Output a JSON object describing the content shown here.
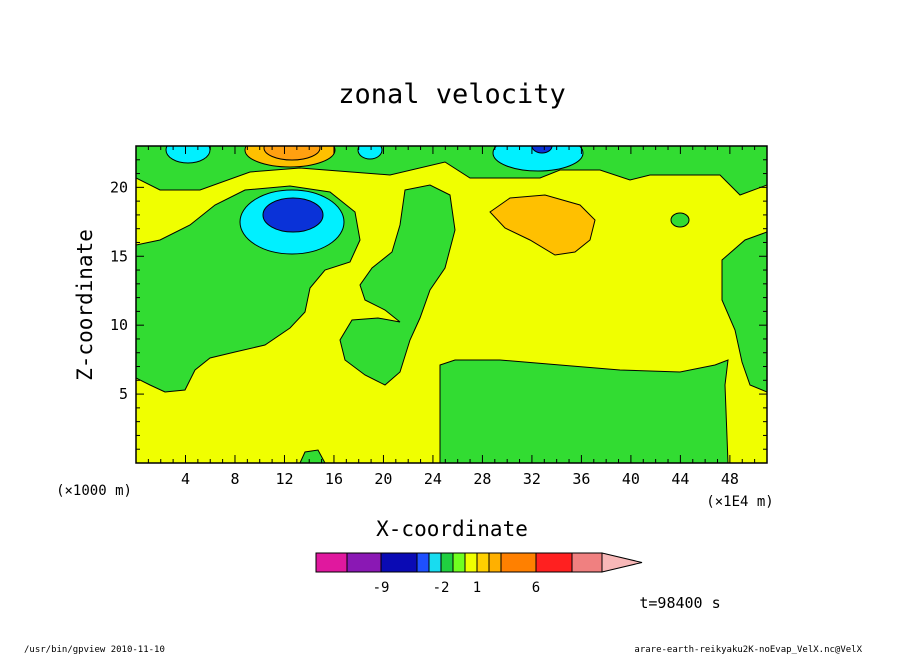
{
  "chart_data": {
    "type": "heatmap",
    "title": "zonal velocity",
    "xlabel": "X-coordinate",
    "ylabel": "Z-coordinate",
    "x_unit_label": "(×1E4 m)",
    "y_unit_label": "(×1000 m)",
    "xlim": [
      0,
      51
    ],
    "ylim": [
      0,
      23
    ],
    "x_ticks": [
      4,
      8,
      12,
      16,
      20,
      24,
      28,
      32,
      36,
      40,
      44,
      48
    ],
    "y_ticks": [
      5,
      10,
      15,
      20
    ],
    "colorbar": {
      "levels": [
        -12,
        -9,
        -6,
        -3,
        -2,
        -1,
        0,
        1,
        2,
        3,
        6,
        9,
        12
      ],
      "colors": [
        "#e0189e",
        "#8a18b4",
        "#0a0ab4",
        "#1e50ff",
        "#18dcf0",
        "#20d040",
        "#70ff20",
        "#f0ff00",
        "#ffd000",
        "#ffb000",
        "#ff8000",
        "#ff2020",
        "#f08080",
        "#f8b8b8"
      ],
      "tick_labels": [
        {
          "value": -9,
          "label": "-9"
        },
        {
          "value": -2,
          "label": "-2"
        },
        {
          "value": 1,
          "label": "1"
        },
        {
          "value": 6,
          "label": "6"
        }
      ]
    },
    "time_label": "t=98400 s"
  },
  "footer": {
    "left": "/usr/bin/gpview  2010-11-10",
    "right": "arare-earth-reikyaku2K-noEvap_VelX.nc@VelX"
  },
  "colors": {
    "yellow": "#f0ff00",
    "green": "#32dc32",
    "cyan": "#00f0ff",
    "blue": "#0a32d8",
    "orange": "#ffc000"
  }
}
